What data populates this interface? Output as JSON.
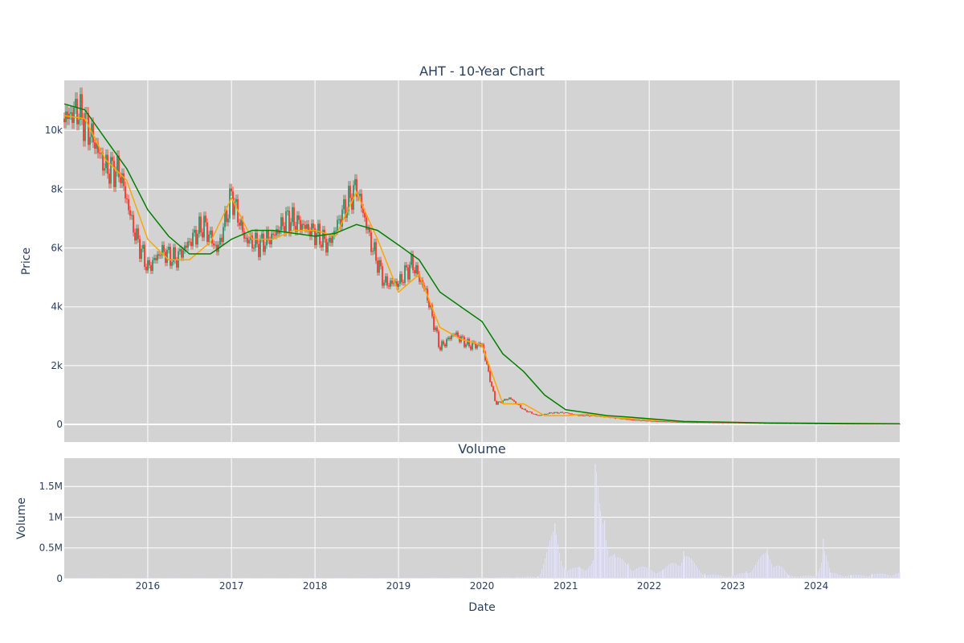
{
  "chart_data": [
    {
      "type": "candlestick",
      "title": "AHT - 10-Year Chart",
      "ylabel": "Price",
      "xlim": [
        "2015-01-01",
        "2024-12-31"
      ],
      "ylim": [
        -600,
        11700
      ],
      "yticks": [
        0,
        2000,
        4000,
        6000,
        8000,
        10000
      ],
      "ytick_labels": [
        "0",
        "2k",
        "4k",
        "6k",
        "8k",
        "10k"
      ],
      "grid": true,
      "legend": "none",
      "colors": {
        "up": "#3d9970",
        "down": "#ff4136",
        "ma_short": "#ffa500",
        "ma_long": "#008000",
        "plot_bg": "#d3d3d3"
      },
      "series": [
        {
          "name": "close",
          "x": [
            "2015-01-01",
            "2015-03-01",
            "2015-05-01",
            "2015-07-01",
            "2015-09-01",
            "2015-11-01",
            "2016-01-01",
            "2016-03-01",
            "2016-05-01",
            "2016-07-01",
            "2016-09-01",
            "2016-11-01",
            "2017-01-01",
            "2017-03-01",
            "2017-05-01",
            "2017-07-01",
            "2017-09-01",
            "2017-11-01",
            "2018-01-01",
            "2018-03-01",
            "2018-05-01",
            "2018-07-01",
            "2018-09-01",
            "2018-11-01",
            "2019-01-01",
            "2019-03-01",
            "2019-05-01",
            "2019-07-01",
            "2019-09-01",
            "2019-11-01",
            "2020-01-01",
            "2020-03-01",
            "2020-05-01",
            "2020-07-01",
            "2020-09-01",
            "2020-11-01",
            "2021-01-01",
            "2021-03-01",
            "2021-05-01",
            "2021-07-01",
            "2021-09-01",
            "2021-11-01",
            "2022-01-01",
            "2022-06-01",
            "2023-01-01",
            "2023-06-01",
            "2024-01-01",
            "2024-06-01",
            "2024-12-31"
          ],
          "values": [
            10400,
            10700,
            9800,
            8700,
            8600,
            6600,
            5300,
            5900,
            5600,
            6200,
            6800,
            5900,
            7800,
            6300,
            6100,
            6400,
            7000,
            6800,
            6500,
            6100,
            7200,
            8100,
            6200,
            4800,
            4800,
            5500,
            4500,
            2600,
            3100,
            2700,
            2700,
            700,
            900,
            500,
            300,
            400,
            400,
            300,
            300,
            250,
            200,
            150,
            120,
            80,
            60,
            40,
            30,
            20,
            20
          ]
        },
        {
          "name": "ma_short",
          "x": [
            "2015-01-01",
            "2015-04-01",
            "2015-07-01",
            "2015-10-01",
            "2016-01-01",
            "2016-04-01",
            "2016-07-01",
            "2016-10-01",
            "2017-01-01",
            "2017-04-01",
            "2017-07-01",
            "2017-10-01",
            "2018-01-01",
            "2018-04-01",
            "2018-07-01",
            "2018-10-01",
            "2019-01-01",
            "2019-04-01",
            "2019-07-01",
            "2019-10-01",
            "2020-01-01",
            "2020-04-01",
            "2020-07-01",
            "2020-10-01",
            "2021-01-01",
            "2021-04-01",
            "2021-07-01",
            "2021-10-01",
            "2022-06-01",
            "2023-06-01",
            "2024-12-31"
          ],
          "values": [
            10500,
            10400,
            9000,
            8300,
            6300,
            5600,
            5600,
            6200,
            7700,
            6300,
            6300,
            6600,
            6600,
            6400,
            7900,
            6300,
            4500,
            5100,
            3300,
            2900,
            2700,
            700,
            700,
            300,
            300,
            350,
            250,
            200,
            100,
            50,
            20
          ]
        },
        {
          "name": "ma_long",
          "x": [
            "2015-01-01",
            "2015-04-01",
            "2015-07-01",
            "2015-10-01",
            "2016-01-01",
            "2016-04-01",
            "2016-07-01",
            "2016-10-01",
            "2017-01-01",
            "2017-04-01",
            "2017-07-01",
            "2017-10-01",
            "2018-01-01",
            "2018-04-01",
            "2018-07-01",
            "2018-10-01",
            "2019-01-01",
            "2019-04-01",
            "2019-07-01",
            "2019-10-01",
            "2020-01-01",
            "2020-04-01",
            "2020-07-01",
            "2020-10-01",
            "2021-01-01",
            "2021-04-01",
            "2021-07-01",
            "2021-10-01",
            "2022-06-01",
            "2023-06-01",
            "2024-12-31"
          ],
          "values": [
            10900,
            10700,
            9700,
            8700,
            7300,
            6400,
            5800,
            5800,
            6300,
            6600,
            6600,
            6500,
            6400,
            6500,
            6800,
            6600,
            6100,
            5600,
            4500,
            4000,
            3500,
            2400,
            1800,
            1000,
            500,
            400,
            300,
            250,
            100,
            50,
            20
          ]
        }
      ]
    },
    {
      "type": "bar",
      "title": "Volume",
      "xlabel": "Date",
      "ylabel": "Volume",
      "xlim": [
        "2015-01-01",
        "2024-12-31"
      ],
      "xticks": [
        "2016-01-01",
        "2017-01-01",
        "2018-01-01",
        "2019-01-01",
        "2020-01-01",
        "2021-01-01",
        "2022-01-01",
        "2023-01-01",
        "2024-01-01"
      ],
      "xtick_labels": [
        "2016",
        "2017",
        "2018",
        "2019",
        "2020",
        "2021",
        "2022",
        "2023",
        "2024"
      ],
      "ylim": [
        0,
        1960000
      ],
      "yticks": [
        0,
        500000,
        1000000,
        1500000
      ],
      "ytick_labels": [
        "0",
        "0.5M",
        "1M",
        "1.5M"
      ],
      "grid": true,
      "colors": {
        "bar": "#e6e6fa",
        "plot_bg": "#d3d3d3"
      },
      "x": [
        "2015-01-01",
        "2016-01-01",
        "2017-01-01",
        "2018-01-01",
        "2019-01-01",
        "2019-09-01",
        "2020-01-01",
        "2020-06-01",
        "2020-09-01",
        "2020-11-15",
        "2021-01-01",
        "2021-03-01",
        "2021-05-01",
        "2021-05-10",
        "2021-06-01",
        "2021-06-20",
        "2021-08-01",
        "2021-10-01",
        "2022-01-01",
        "2022-03-01",
        "2022-06-01",
        "2022-09-01",
        "2023-01-01",
        "2023-03-01",
        "2023-06-01",
        "2023-09-01",
        "2024-01-01",
        "2024-02-01",
        "2024-03-01",
        "2024-06-01",
        "2024-09-01",
        "2024-12-31"
      ],
      "values": [
        10000,
        10000,
        10000,
        10000,
        15000,
        20000,
        20000,
        30000,
        40000,
        900000,
        150000,
        200000,
        300000,
        1870000,
        1100000,
        950000,
        400000,
        250000,
        180000,
        150000,
        450000,
        80000,
        50000,
        120000,
        480000,
        60000,
        50000,
        650000,
        100000,
        60000,
        80000,
        100000
      ]
    }
  ]
}
